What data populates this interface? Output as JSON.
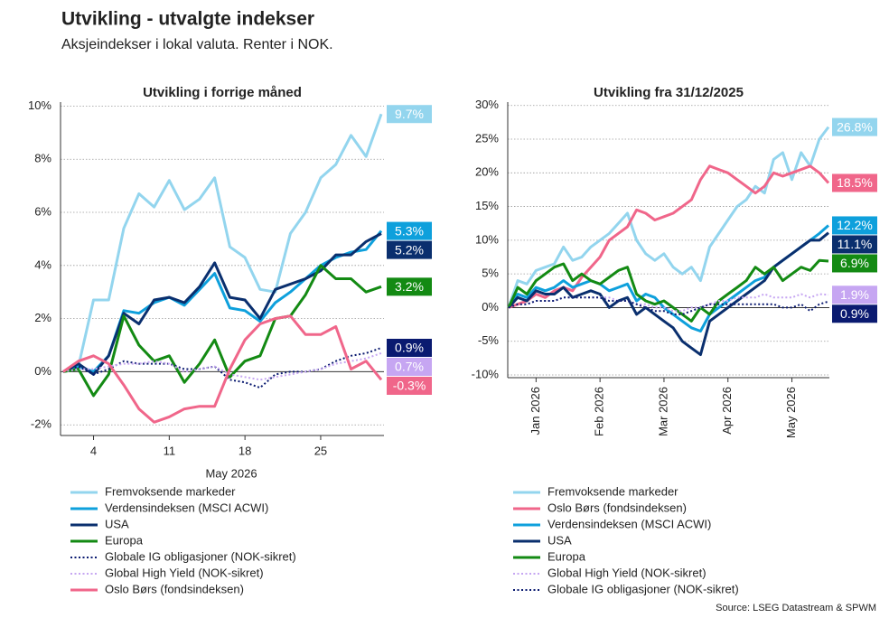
{
  "title": "Utvikling - utvalgte indekser",
  "subtitle": "Aksjeindekser i lokal valuta. Renter i NOK.",
  "source": "Source: LSEG Datastream & SPWM",
  "chart_data": [
    {
      "type": "line",
      "title": "Utvikling i forrige måned",
      "xlabel": "May 2026",
      "categories": [
        null,
        null,
        "4",
        null,
        null,
        null,
        null,
        "11",
        null,
        null,
        null,
        null,
        "18",
        null,
        null,
        null,
        null,
        "25",
        null,
        null,
        null,
        null
      ],
      "ylim": [
        -2.4,
        10.15
      ],
      "yticks": [
        {
          "value": -2,
          "label": "-2%"
        },
        {
          "value": 0,
          "label": "0%"
        },
        {
          "value": 2,
          "label": "2%"
        },
        {
          "value": 4,
          "label": "4%"
        },
        {
          "value": 6,
          "label": "6%"
        },
        {
          "value": 8,
          "label": "8%"
        },
        {
          "value": 10,
          "label": "10%"
        }
      ],
      "grid": true,
      "series": [
        {
          "name": "Fremvoksende markeder",
          "color": "#93d5ee",
          "style": "solid",
          "values": [
            0,
            0.2,
            2.7,
            2.7,
            5.4,
            6.7,
            6.2,
            7.2,
            6.1,
            6.5,
            7.3,
            4.7,
            4.3,
            3.1,
            3.0,
            5.2,
            6.0,
            7.3,
            7.8,
            8.9,
            8.1,
            9.7
          ],
          "value_labels": [
            null,
            null,
            null,
            null,
            null,
            null,
            null,
            null,
            null,
            null,
            null,
            null,
            null,
            null,
            null,
            null,
            null,
            null,
            null,
            null,
            null,
            "9.7%"
          ]
        },
        {
          "name": "Verdensindeksen (MSCI ACWI)",
          "color": "#0ea0dc",
          "style": "solid",
          "values": [
            0,
            0.2,
            0.0,
            0.6,
            2.3,
            2.2,
            2.6,
            2.8,
            2.5,
            3.1,
            3.7,
            2.4,
            2.3,
            1.9,
            2.6,
            3.0,
            3.5,
            4.0,
            4.3,
            4.5,
            4.6,
            5.3
          ],
          "value_labels": [
            null,
            null,
            null,
            null,
            null,
            null,
            null,
            null,
            null,
            null,
            null,
            null,
            null,
            null,
            null,
            null,
            null,
            null,
            null,
            null,
            null,
            "5.3%"
          ]
        },
        {
          "name": "USA",
          "color": "#0a2f6e",
          "style": "solid",
          "values": [
            0,
            0.3,
            -0.1,
            0.6,
            2.2,
            1.8,
            2.7,
            2.8,
            2.6,
            3.2,
            4.1,
            2.8,
            2.7,
            2.0,
            3.1,
            3.3,
            3.5,
            3.8,
            4.4,
            4.4,
            4.9,
            5.2
          ],
          "value_labels": [
            null,
            null,
            null,
            null,
            null,
            null,
            null,
            null,
            null,
            null,
            null,
            null,
            null,
            null,
            null,
            null,
            null,
            null,
            null,
            null,
            null,
            "5.2%"
          ]
        },
        {
          "name": "Europa",
          "color": "#138a13",
          "style": "solid",
          "values": [
            0,
            0.1,
            -0.9,
            -0.1,
            2.1,
            1.0,
            0.4,
            0.6,
            -0.4,
            0.3,
            1.2,
            -0.2,
            0.4,
            0.6,
            2.0,
            2.1,
            2.9,
            4.0,
            3.5,
            3.5,
            3.0,
            3.2
          ],
          "value_labels": [
            null,
            null,
            null,
            null,
            null,
            null,
            null,
            null,
            null,
            null,
            null,
            null,
            null,
            null,
            null,
            null,
            null,
            null,
            null,
            null,
            null,
            "3.2%"
          ]
        },
        {
          "name": "Globale IG obligasjoner (NOK-sikret)",
          "color": "#0a1a70",
          "style": "dotted",
          "values": [
            0,
            0.2,
            -0.1,
            0.1,
            0.4,
            0.3,
            0.3,
            0.3,
            0.1,
            0.1,
            0.2,
            -0.3,
            -0.4,
            -0.6,
            -0.1,
            0.0,
            0.0,
            0.1,
            0.4,
            0.6,
            0.7,
            0.9
          ],
          "value_labels": [
            null,
            null,
            null,
            null,
            null,
            null,
            null,
            null,
            null,
            null,
            null,
            null,
            null,
            null,
            null,
            null,
            null,
            null,
            null,
            null,
            null,
            "0.9%"
          ]
        },
        {
          "name": "Global High Yield (NOK-sikret)",
          "color": "#c6a6f2",
          "style": "dotted",
          "values": [
            0,
            0.1,
            0.1,
            0.2,
            0.3,
            0.3,
            0.4,
            0.3,
            0.0,
            0.1,
            0.2,
            -0.1,
            -0.2,
            -0.3,
            -0.2,
            -0.1,
            0.0,
            0.1,
            0.3,
            0.4,
            0.5,
            0.7
          ],
          "value_labels": [
            null,
            null,
            null,
            null,
            null,
            null,
            null,
            null,
            null,
            null,
            null,
            null,
            null,
            null,
            null,
            null,
            null,
            null,
            null,
            null,
            null,
            "0.7%"
          ]
        },
        {
          "name": "Oslo Børs (fondsindeksen)",
          "color": "#f0668a",
          "style": "solid",
          "values": [
            0,
            0.4,
            0.6,
            0.3,
            -0.5,
            -1.4,
            -1.9,
            -1.7,
            -1.4,
            -1.3,
            -1.3,
            0.1,
            1.2,
            1.8,
            2.0,
            2.1,
            1.4,
            1.4,
            1.7,
            0.1,
            0.4,
            -0.3
          ],
          "value_labels": [
            null,
            null,
            null,
            null,
            null,
            null,
            null,
            null,
            null,
            null,
            null,
            null,
            null,
            null,
            null,
            null,
            null,
            null,
            null,
            null,
            null,
            "-0.3%"
          ]
        }
      ]
    },
    {
      "type": "line",
      "title": "Utvikling fra 31/12/2025",
      "categories": [
        null,
        null,
        null,
        "Jan 2026",
        null,
        null,
        null,
        null,
        null,
        null,
        "Feb 2026",
        null,
        null,
        null,
        null,
        null,
        null,
        "Mar 2026",
        null,
        null,
        null,
        null,
        null,
        null,
        "Apr 2026",
        null,
        null,
        null,
        null,
        null,
        null,
        "May 2026",
        null,
        null,
        null,
        null
      ],
      "ylim": [
        -10.4,
        30.5
      ],
      "yticks": [
        {
          "value": -10,
          "label": "-10%"
        },
        {
          "value": -5,
          "label": "-5%"
        },
        {
          "value": 0,
          "label": "0%"
        },
        {
          "value": 5,
          "label": "5%"
        },
        {
          "value": 10,
          "label": "10%"
        },
        {
          "value": 15,
          "label": "15%"
        },
        {
          "value": 20,
          "label": "20%"
        },
        {
          "value": 25,
          "label": "25%"
        },
        {
          "value": 30,
          "label": "30%"
        }
      ],
      "grid": true,
      "series": [
        {
          "name": "Fremvoksende markeder",
          "color": "#93d5ee",
          "style": "solid",
          "values": [
            0,
            4,
            3.5,
            5.5,
            6,
            6.5,
            9,
            7,
            7.5,
            9,
            10,
            11,
            12.5,
            14,
            10,
            8,
            7,
            8,
            6,
            5,
            6,
            4,
            9,
            11,
            13,
            15,
            16,
            18,
            17,
            22,
            23,
            19,
            23,
            21,
            25,
            26.8
          ],
          "value_labels": [
            null,
            null,
            null,
            null,
            null,
            null,
            null,
            null,
            null,
            null,
            null,
            null,
            null,
            null,
            null,
            null,
            null,
            null,
            null,
            null,
            null,
            null,
            null,
            null,
            null,
            null,
            null,
            null,
            null,
            null,
            null,
            null,
            null,
            null,
            null,
            "26.8%"
          ]
        },
        {
          "name": "Oslo Børs (fondsindeksen)",
          "color": "#f0668a",
          "style": "solid",
          "values": [
            0,
            0.5,
            1,
            2,
            1.5,
            2.5,
            3,
            2.5,
            4.5,
            6,
            7.5,
            10,
            11,
            12,
            14.5,
            14,
            13,
            13.5,
            14,
            15,
            16,
            19,
            21,
            20.5,
            20,
            19,
            18,
            17,
            18,
            20,
            19.5,
            20,
            20.5,
            21,
            20,
            18.5
          ],
          "value_labels": [
            null,
            null,
            null,
            null,
            null,
            null,
            null,
            null,
            null,
            null,
            null,
            null,
            null,
            null,
            null,
            null,
            null,
            null,
            null,
            null,
            null,
            null,
            null,
            null,
            null,
            null,
            null,
            null,
            null,
            null,
            null,
            null,
            null,
            null,
            null,
            "18.5%"
          ]
        },
        {
          "name": "Verdensindeksen (MSCI ACWI)",
          "color": "#0ea0dc",
          "style": "solid",
          "values": [
            0,
            2,
            1.5,
            3,
            2.5,
            3,
            4,
            3,
            3.5,
            4,
            3.5,
            2.5,
            3,
            3.5,
            1,
            2,
            1.5,
            0,
            -1,
            -2,
            -3,
            -3.5,
            -1,
            0,
            1,
            2,
            3,
            4,
            4.5,
            6,
            7,
            8,
            9,
            10,
            11,
            12.2
          ],
          "value_labels": [
            null,
            null,
            null,
            null,
            null,
            null,
            null,
            null,
            null,
            null,
            null,
            null,
            null,
            null,
            null,
            null,
            null,
            null,
            null,
            null,
            null,
            null,
            null,
            null,
            null,
            null,
            null,
            null,
            null,
            null,
            null,
            null,
            null,
            null,
            null,
            "12.2%"
          ]
        },
        {
          "name": "USA",
          "color": "#0a2f6e",
          "style": "solid",
          "values": [
            0,
            1.5,
            1,
            2.5,
            2,
            2,
            3,
            1.5,
            2,
            2.5,
            2,
            0,
            1,
            1.5,
            -1,
            0,
            -1,
            -2,
            -3,
            -5,
            -6,
            -7,
            -2,
            -1,
            0,
            1,
            2,
            3,
            4,
            6,
            7,
            8,
            9,
            10,
            10,
            11.1
          ],
          "value_labels": [
            null,
            null,
            null,
            null,
            null,
            null,
            null,
            null,
            null,
            null,
            null,
            null,
            null,
            null,
            null,
            null,
            null,
            null,
            null,
            null,
            null,
            null,
            null,
            null,
            null,
            null,
            null,
            null,
            null,
            null,
            null,
            null,
            null,
            null,
            null,
            "11.1%"
          ]
        },
        {
          "name": "Europa",
          "color": "#138a13",
          "style": "solid",
          "values": [
            0,
            3,
            2,
            4,
            5,
            6,
            6.5,
            4,
            5,
            4,
            3.5,
            4.5,
            5.5,
            6,
            2,
            1,
            0.5,
            1,
            0,
            -1,
            -2,
            0,
            -1,
            1,
            2,
            3,
            4,
            6,
            5,
            6,
            4,
            5,
            6,
            5.5,
            7,
            6.9
          ],
          "value_labels": [
            null,
            null,
            null,
            null,
            null,
            null,
            null,
            null,
            null,
            null,
            null,
            null,
            null,
            null,
            null,
            null,
            null,
            null,
            null,
            null,
            null,
            null,
            null,
            null,
            null,
            null,
            null,
            null,
            null,
            null,
            null,
            null,
            null,
            null,
            null,
            "6.9%"
          ]
        },
        {
          "name": "Global High Yield (NOK-sikret)",
          "color": "#c6a6f2",
          "style": "dotted",
          "values": [
            0,
            0.5,
            0.5,
            1,
            1,
            1,
            1.5,
            1.5,
            1.5,
            1.5,
            1.5,
            1.5,
            1,
            1,
            0.5,
            0.5,
            0,
            0,
            -0.5,
            -0.5,
            0,
            0,
            0.5,
            1,
            1,
            1.5,
            1.5,
            1.5,
            2,
            1.5,
            1.5,
            1.5,
            2,
            1.5,
            2,
            1.9
          ],
          "value_labels": [
            null,
            null,
            null,
            null,
            null,
            null,
            null,
            null,
            null,
            null,
            null,
            null,
            null,
            null,
            null,
            null,
            null,
            null,
            null,
            null,
            null,
            null,
            null,
            null,
            null,
            null,
            null,
            null,
            null,
            null,
            null,
            null,
            null,
            null,
            null,
            "1.9%"
          ]
        },
        {
          "name": "Globale IG obligasjoner (NOK-sikret)",
          "color": "#0a1a70",
          "style": "dotted",
          "values": [
            0,
            0.5,
            0.5,
            1,
            1,
            1,
            1.5,
            1.5,
            1.5,
            1.5,
            1.5,
            1,
            1,
            1,
            0.5,
            0,
            -0.5,
            -0.5,
            -1,
            -1,
            -0.5,
            0,
            0.5,
            0.5,
            0.5,
            0.5,
            0.5,
            0.5,
            0.5,
            0.5,
            0,
            0,
            0.5,
            -0.5,
            0.5,
            0.9
          ],
          "value_labels": [
            null,
            null,
            null,
            null,
            null,
            null,
            null,
            null,
            null,
            null,
            null,
            null,
            null,
            null,
            null,
            null,
            null,
            null,
            null,
            null,
            null,
            null,
            null,
            null,
            null,
            null,
            null,
            null,
            null,
            null,
            null,
            null,
            null,
            null,
            null,
            "0.9%"
          ]
        }
      ]
    }
  ]
}
